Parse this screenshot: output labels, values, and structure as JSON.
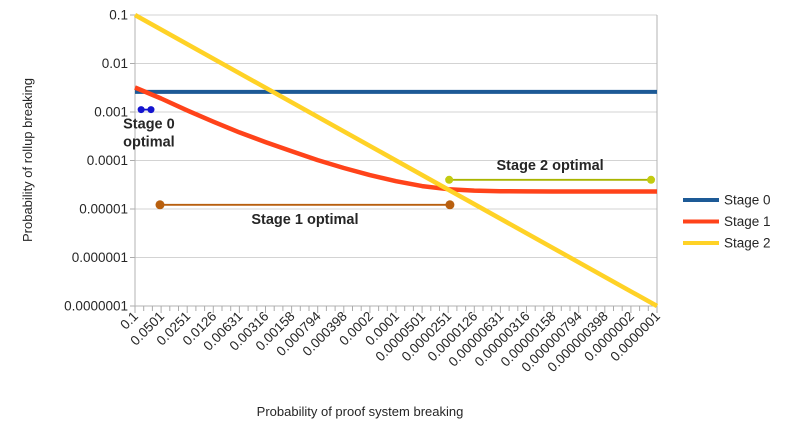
{
  "chart_data": {
    "type": "line",
    "title": "",
    "xlabel": "Probability of proof system breaking",
    "ylabel": "Probability of rollup breaking",
    "x_scale": "log",
    "y_scale": "log",
    "xlim": [
      0.1,
      1e-07
    ],
    "ylim": [
      1e-07,
      0.1
    ],
    "grid": "horizontal",
    "legend_position": "right-middle",
    "y_tick_labels": [
      "0.1",
      "0.01",
      "0.001",
      "0.0001",
      "0.00001",
      "0.000001",
      "0.0000001"
    ],
    "x_tick_labels": [
      "0.1",
      "0.0501",
      "0.0251",
      "0.0126",
      "0.00631",
      "0.00316",
      "0.00158",
      "0.000794",
      "0.000398",
      "0.0002",
      "0.0001",
      "0.0000501",
      "0.0000251",
      "0.0000126",
      "0.00000631",
      "0.00000316",
      "0.00000158",
      "0.000000794",
      "0.000000398",
      "0.0000002",
      "0.0000001"
    ],
    "series": [
      {
        "name": "Stage 0",
        "color": "#1d5a96",
        "width": 4,
        "x": [
          0.1,
          1e-07
        ],
        "y": [
          0.0026,
          0.0026
        ]
      },
      {
        "name": "Stage 1",
        "color": "#ff431a",
        "width": 4.5,
        "x": [
          0.1,
          0.0501,
          0.0251,
          0.0126,
          0.00631,
          0.00316,
          0.00158,
          0.000794,
          0.000398,
          0.0002,
          0.0001,
          5.01e-05,
          2.51e-05,
          1.26e-05,
          6.31e-06,
          3.16e-06,
          1.58e-06,
          7.94e-07,
          3.98e-07,
          2e-07,
          1e-07
        ],
        "y": [
          0.0032,
          0.0019,
          0.00108,
          0.00063,
          0.00038,
          0.00024,
          0.000155,
          0.000102,
          7e-05,
          5e-05,
          3.75e-05,
          2.96e-05,
          2.56e-05,
          2.39e-05,
          2.33e-05,
          2.31e-05,
          2.3e-05,
          2.3e-05,
          2.3e-05,
          2.3e-05,
          2.3e-05
        ]
      },
      {
        "name": "Stage 2",
        "color": "#ffd226",
        "width": 4.5,
        "x": [
          0.1,
          1e-07
        ],
        "y": [
          0.1,
          1e-07
        ]
      }
    ],
    "annotations": [
      {
        "label": "Stage 0 optimal",
        "text_lines": [
          "Stage 0",
          "optimal"
        ],
        "label_position": "below-left",
        "text_color": "#1414cf",
        "line_color": "#1414cf",
        "dot_color": "#1414cf",
        "dot_r": 3.5,
        "x_from": 0.085,
        "x_to": 0.0655,
        "y": 0.00112
      },
      {
        "label": "Stage 1 optimal",
        "text_lines": [
          "Stage 1 optimal"
        ],
        "label_position": "below-center",
        "text_color": "#cc6a12",
        "line_color": "#b85f0e",
        "dot_color": "#b85f0e",
        "dot_r": 4.5,
        "x_from": 0.0516,
        "x_to": 2.4e-05,
        "y": 1.22e-05
      },
      {
        "label": "Stage 2 optimal",
        "text_lines": [
          "Stage 2 optimal"
        ],
        "label_position": "above-center",
        "text_color": "#7d7d00",
        "line_color": "#a9b400",
        "dot_color": "#c3cb10",
        "dot_r": 4,
        "x_from": 2.45e-05,
        "x_to": 1.17e-07,
        "y": 4e-05
      }
    ],
    "legend": [
      "Stage 0",
      "Stage 1",
      "Stage 2"
    ]
  }
}
